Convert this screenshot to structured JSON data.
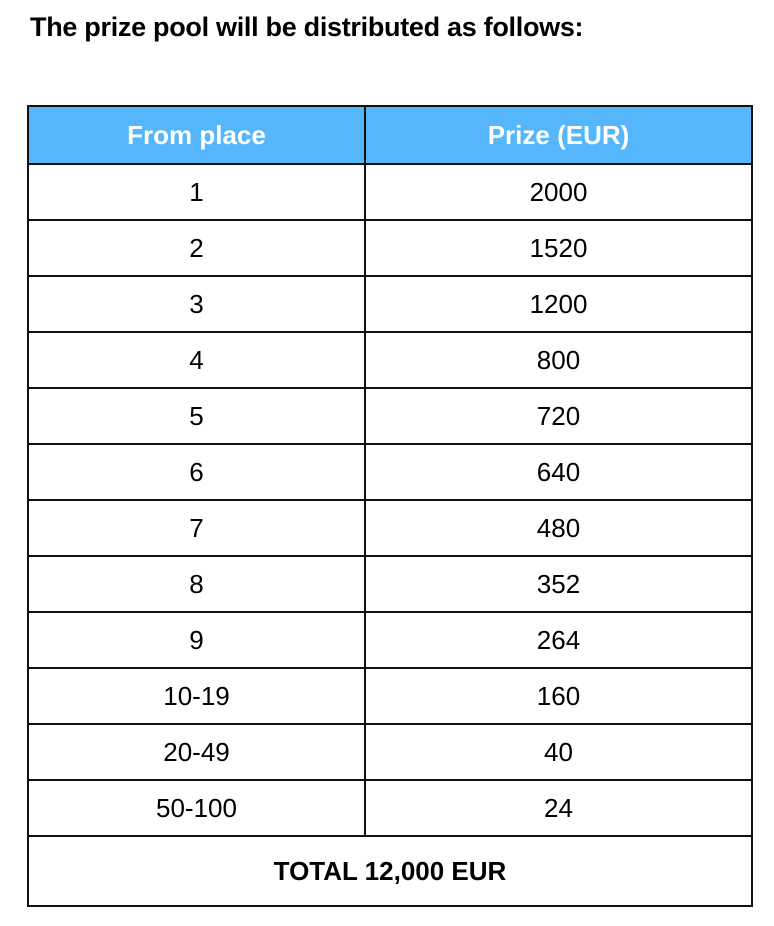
{
  "title": "The prize pool will be distributed as follows:",
  "header_color": "#55b6fb",
  "table": {
    "headers": [
      "From place",
      "Prize (EUR)"
    ],
    "rows": [
      [
        "1",
        "2000"
      ],
      [
        "2",
        "1520"
      ],
      [
        "3",
        "1200"
      ],
      [
        "4",
        "800"
      ],
      [
        "5",
        "720"
      ],
      [
        "6",
        "640"
      ],
      [
        "7",
        "480"
      ],
      [
        "8",
        "352"
      ],
      [
        "9",
        "264"
      ],
      [
        "10-19",
        "160"
      ],
      [
        "20-49",
        "40"
      ],
      [
        "50-100",
        "24"
      ]
    ],
    "total": "TOTAL 12,000 EUR"
  }
}
